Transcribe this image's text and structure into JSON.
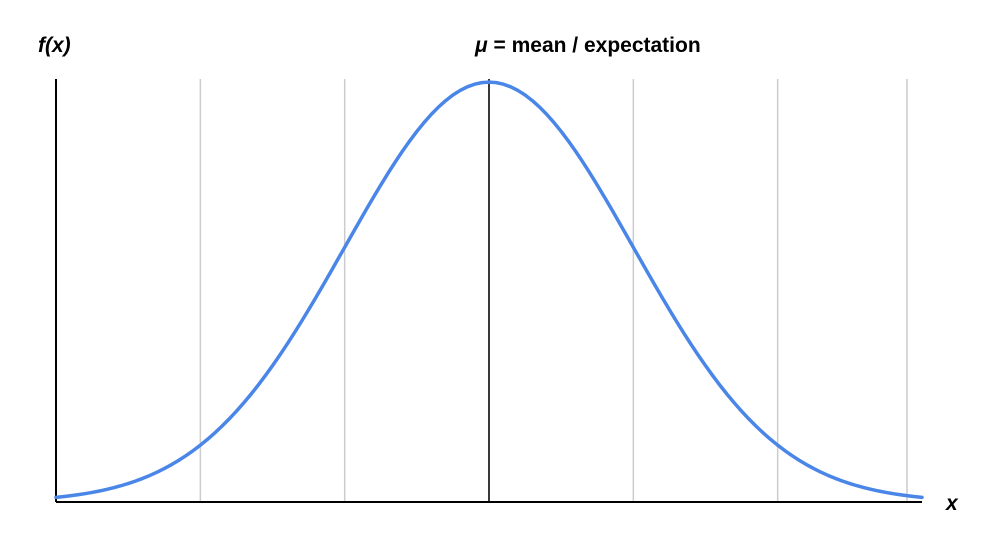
{
  "chart_data": {
    "type": "line",
    "title": "",
    "xlabel": "x",
    "ylabel": "f(x)",
    "annotation": {
      "prefix": "μ",
      "text": " = mean / expectation"
    },
    "grid": true,
    "xlim": [
      -3,
      3
    ],
    "ylim": [
      0,
      0.4
    ],
    "vertical_gridlines_x": [
      -2,
      -1,
      0,
      1,
      2,
      3
    ],
    "mean_line_x": 0,
    "series": [
      {
        "distribution": "normal",
        "mu": 0,
        "sigma": 1,
        "x_range": [
          -3,
          3
        ],
        "samples": 121
      }
    ],
    "colors": {
      "curve": "#4a86e8",
      "gridline": "#cccccc",
      "axis": "#000000",
      "mean_line": "#000000"
    }
  }
}
